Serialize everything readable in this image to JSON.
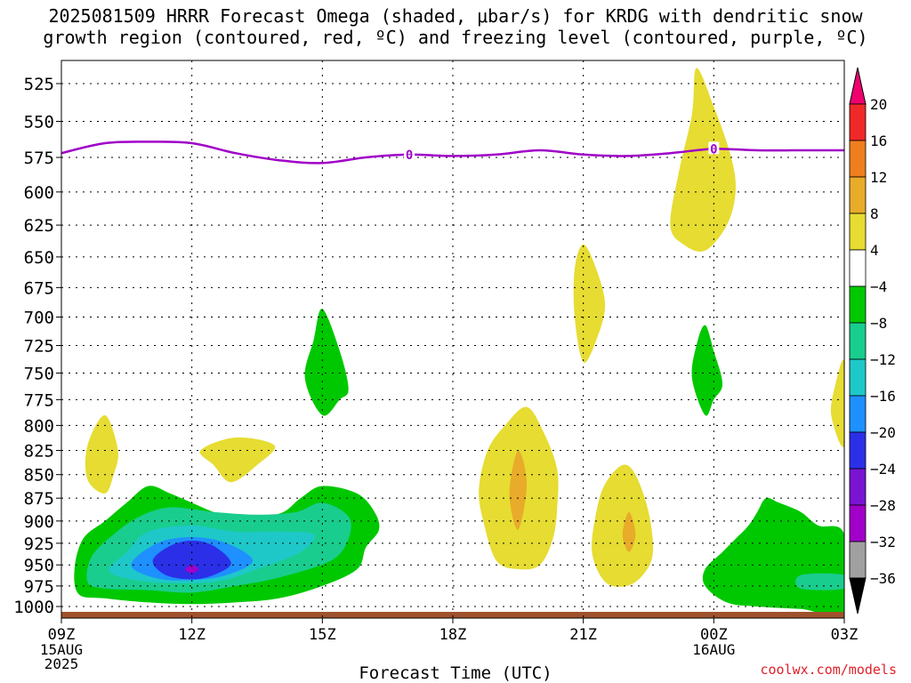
{
  "title": {
    "line1": "2025081509 HRRR Forecast Omega (shaded, μbar/s) for KRDG with dendritic snow",
    "line2": "growth region (contoured, red, ºC) and freezing level (contoured, purple, ºC)"
  },
  "credit": "coolwx.com/models",
  "chart_data": {
    "type": "heatmap",
    "xlabel": "Forecast Time (UTC)",
    "ylabel": "",
    "x_ticks": [
      {
        "hour": 0,
        "label": "09Z",
        "sub": [
          "15AUG",
          "2025"
        ]
      },
      {
        "hour": 3,
        "label": "12Z",
        "sub": []
      },
      {
        "hour": 6,
        "label": "15Z",
        "sub": []
      },
      {
        "hour": 9,
        "label": "18Z",
        "sub": []
      },
      {
        "hour": 12,
        "label": "21Z",
        "sub": []
      },
      {
        "hour": 15,
        "label": "00Z",
        "sub": [
          "16AUG"
        ]
      },
      {
        "hour": 18,
        "label": "03Z",
        "sub": []
      }
    ],
    "xlim_hours": [
      0,
      18
    ],
    "y_ticks": [
      525,
      550,
      575,
      600,
      625,
      650,
      675,
      700,
      725,
      750,
      775,
      800,
      825,
      850,
      875,
      900,
      925,
      950,
      975,
      1000
    ],
    "ylim_hpa": [
      505,
      1013
    ],
    "y_scale": "log-pressure",
    "grid": true,
    "colorbar": {
      "levels": [
        20,
        16,
        12,
        8,
        4,
        -4,
        -8,
        -12,
        -16,
        -20,
        -24,
        -28,
        -32,
        -36
      ],
      "colors": [
        "#f0006e",
        "#f02828",
        "#ee7e1e",
        "#e8ab2a",
        "#e6dc32",
        "#ffffff",
        "#00c800",
        "#19cd8e",
        "#1ec8c8",
        "#1e90ff",
        "#2b30e8",
        "#7814d2",
        "#a000c8",
        "#a0a0a0",
        "#000000"
      ]
    },
    "freezing_level": {
      "label": "0",
      "color": "#a000c8",
      "points": [
        [
          0,
          572
        ],
        [
          1,
          565
        ],
        [
          2,
          564
        ],
        [
          3,
          565
        ],
        [
          4,
          572
        ],
        [
          5,
          577
        ],
        [
          6,
          579
        ],
        [
          7,
          575
        ],
        [
          8,
          573
        ],
        [
          9,
          574
        ],
        [
          10,
          573
        ],
        [
          11,
          570
        ],
        [
          12,
          573
        ],
        [
          13,
          574
        ],
        [
          14,
          572
        ],
        [
          15,
          569
        ],
        [
          16,
          570
        ],
        [
          17,
          570
        ],
        [
          18,
          570
        ]
      ],
      "label_hours": [
        8,
        15
      ]
    },
    "surface": {
      "color": "#a0522d"
    },
    "omega_regions": [
      {
        "level": 4,
        "points": [
          [
            14.6,
            515
          ],
          [
            15.0,
            540
          ],
          [
            15.4,
            575
          ],
          [
            15.5,
            600
          ],
          [
            15.3,
            625
          ],
          [
            14.8,
            645
          ],
          [
            14.3,
            640
          ],
          [
            14.0,
            625
          ],
          [
            14.2,
            585
          ],
          [
            14.5,
            545
          ]
        ]
      },
      {
        "level": 4,
        "points": [
          [
            12.0,
            640
          ],
          [
            12.3,
            660
          ],
          [
            12.5,
            690
          ],
          [
            12.3,
            720
          ],
          [
            12.0,
            740
          ],
          [
            11.8,
            700
          ],
          [
            11.8,
            660
          ]
        ]
      },
      {
        "level": -4,
        "points": [
          [
            6.0,
            693
          ],
          [
            6.4,
            730
          ],
          [
            6.6,
            765
          ],
          [
            6.4,
            775
          ],
          [
            6.0,
            790
          ],
          [
            5.6,
            755
          ],
          [
            5.8,
            720
          ]
        ]
      },
      {
        "level": -4,
        "points": [
          [
            14.8,
            707
          ],
          [
            15.0,
            730
          ],
          [
            15.2,
            760
          ],
          [
            15.0,
            775
          ],
          [
            14.8,
            790
          ],
          [
            14.5,
            755
          ],
          [
            14.6,
            725
          ]
        ]
      },
      {
        "level": 4,
        "points": [
          [
            18.0,
            740
          ],
          [
            18.0,
            820
          ],
          [
            17.7,
            790
          ],
          [
            17.8,
            760
          ]
        ]
      },
      {
        "level": 4,
        "points": [
          [
            1.0,
            790
          ],
          [
            1.3,
            825
          ],
          [
            1.2,
            850
          ],
          [
            1.0,
            870
          ],
          [
            0.6,
            855
          ],
          [
            0.6,
            820
          ]
        ]
      },
      {
        "level": 4,
        "points": [
          [
            3.2,
            825
          ],
          [
            4.0,
            812
          ],
          [
            4.9,
            820
          ],
          [
            4.5,
            840
          ],
          [
            3.9,
            858
          ],
          [
            3.5,
            840
          ]
        ]
      },
      {
        "level": 4,
        "points": [
          [
            10.7,
            782
          ],
          [
            11.1,
            808
          ],
          [
            11.4,
            845
          ],
          [
            11.4,
            885
          ],
          [
            11.3,
            920
          ],
          [
            11.0,
            950
          ],
          [
            10.5,
            955
          ],
          [
            10.0,
            945
          ],
          [
            9.7,
            900
          ],
          [
            9.6,
            865
          ],
          [
            9.8,
            825
          ],
          [
            10.2,
            800
          ]
        ]
      },
      {
        "level": 8,
        "points": [
          [
            10.5,
            825
          ],
          [
            10.7,
            860
          ],
          [
            10.5,
            910
          ],
          [
            10.3,
            870
          ]
        ]
      },
      {
        "level": 4,
        "points": [
          [
            12.9,
            840
          ],
          [
            13.2,
            850
          ],
          [
            13.5,
            890
          ],
          [
            13.6,
            935
          ],
          [
            13.4,
            960
          ],
          [
            13.0,
            975
          ],
          [
            12.5,
            970
          ],
          [
            12.2,
            935
          ],
          [
            12.3,
            890
          ],
          [
            12.5,
            860
          ]
        ]
      },
      {
        "level": 8,
        "points": [
          [
            13.05,
            890
          ],
          [
            13.2,
            915
          ],
          [
            13.05,
            935
          ],
          [
            12.9,
            915
          ]
        ]
      },
      {
        "level": -4,
        "points": [
          [
            0.4,
            985
          ],
          [
            0.3,
            955
          ],
          [
            0.5,
            920
          ],
          [
            1.0,
            900
          ],
          [
            1.5,
            880
          ],
          [
            2.0,
            862
          ],
          [
            2.5,
            870
          ],
          [
            3.0,
            880
          ],
          [
            3.5,
            890
          ],
          [
            4.0,
            895
          ],
          [
            5.0,
            892
          ],
          [
            5.5,
            875
          ],
          [
            6.0,
            862
          ],
          [
            6.8,
            870
          ],
          [
            7.2,
            890
          ],
          [
            7.3,
            910
          ],
          [
            7.0,
            930
          ],
          [
            6.8,
            955
          ],
          [
            6.0,
            975
          ],
          [
            5.0,
            990
          ],
          [
            4.0,
            995
          ],
          [
            3.0,
            997
          ],
          [
            2.0,
            995
          ],
          [
            1.0,
            990
          ]
        ]
      },
      {
        "level": -8,
        "points": [
          [
            0.6,
            970
          ],
          [
            0.7,
            940
          ],
          [
            1.2,
            915
          ],
          [
            1.8,
            895
          ],
          [
            2.5,
            885
          ],
          [
            3.5,
            890
          ],
          [
            4.5,
            893
          ],
          [
            5.4,
            890
          ],
          [
            6.0,
            880
          ],
          [
            6.6,
            895
          ],
          [
            6.6,
            920
          ],
          [
            6.2,
            945
          ],
          [
            5.0,
            965
          ],
          [
            4.0,
            975
          ],
          [
            3.0,
            983
          ],
          [
            2.0,
            980
          ],
          [
            1.0,
            978
          ]
        ]
      },
      {
        "level": -12,
        "points": [
          [
            1.1,
            958
          ],
          [
            1.5,
            935
          ],
          [
            2.0,
            912
          ],
          [
            3.0,
            905
          ],
          [
            4.0,
            912
          ],
          [
            5.0,
            912
          ],
          [
            5.8,
            915
          ],
          [
            5.5,
            935
          ],
          [
            4.5,
            955
          ],
          [
            3.5,
            970
          ],
          [
            2.0,
            970
          ]
        ]
      },
      {
        "level": -16,
        "points": [
          [
            1.6,
            950
          ],
          [
            2.2,
            925
          ],
          [
            3.0,
            918
          ],
          [
            3.8,
            925
          ],
          [
            4.4,
            945
          ],
          [
            3.8,
            962
          ],
          [
            3.0,
            968
          ],
          [
            2.2,
            966
          ]
        ]
      },
      {
        "level": -20,
        "points": [
          [
            2.1,
            945
          ],
          [
            2.5,
            928
          ],
          [
            3.0,
            922
          ],
          [
            3.5,
            928
          ],
          [
            3.9,
            948
          ],
          [
            3.5,
            962
          ],
          [
            3.0,
            967
          ],
          [
            2.4,
            962
          ]
        ]
      },
      {
        "level": -24,
        "points": [
          [
            2.85,
            955
          ],
          [
            3.0,
            950
          ],
          [
            3.15,
            955
          ],
          [
            3.0,
            960
          ]
        ]
      },
      {
        "level": -4,
        "points": [
          [
            15.3,
            995
          ],
          [
            14.8,
            975
          ],
          [
            14.8,
            955
          ],
          [
            15.2,
            935
          ],
          [
            15.5,
            920
          ],
          [
            15.8,
            905
          ],
          [
            16.0,
            890
          ],
          [
            16.2,
            875
          ],
          [
            16.5,
            880
          ],
          [
            17.0,
            890
          ],
          [
            17.4,
            905
          ],
          [
            18.0,
            915
          ],
          [
            18.0,
            1005
          ],
          [
            17.0,
            1003
          ],
          [
            16.0,
            1000
          ]
        ]
      },
      {
        "level": -8,
        "points": [
          [
            17.0,
            962
          ],
          [
            18.0,
            962
          ],
          [
            18.0,
            978
          ],
          [
            17.0,
            978
          ]
        ]
      }
    ]
  }
}
